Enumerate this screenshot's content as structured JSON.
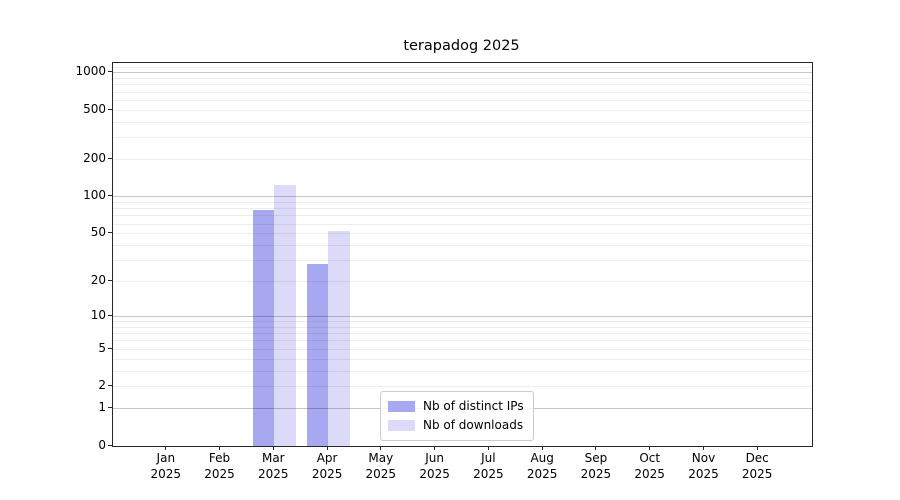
{
  "chart_data": {
    "type": "bar",
    "title": "terapadog 2025",
    "categories": [
      "Jan 2025",
      "Feb 2025",
      "Mar 2025",
      "Apr 2025",
      "May 2025",
      "Jun 2025",
      "Jul 2025",
      "Aug 2025",
      "Sep 2025",
      "Oct 2025",
      "Nov 2025",
      "Dec 2025"
    ],
    "series": [
      {
        "name": "Nb of distinct IPs",
        "color": "#a8a8f0",
        "values": [
          0,
          0,
          78,
          28,
          0,
          0,
          0,
          0,
          0,
          0,
          0,
          0
        ]
      },
      {
        "name": "Nb of downloads",
        "color": "#dbdbf9",
        "values": [
          0,
          0,
          125,
          53,
          0,
          0,
          0,
          0,
          0,
          0,
          0,
          0
        ]
      }
    ],
    "xlabel": "",
    "ylabel": "",
    "yscale": "log1p",
    "ylim": [
      0,
      1200
    ],
    "yticks": [
      0,
      1,
      2,
      5,
      10,
      20,
      50,
      100,
      200,
      500,
      1000
    ],
    "major_grid_at": [
      1,
      10,
      100,
      1000
    ],
    "grid": true,
    "legend_position": "lower center"
  }
}
